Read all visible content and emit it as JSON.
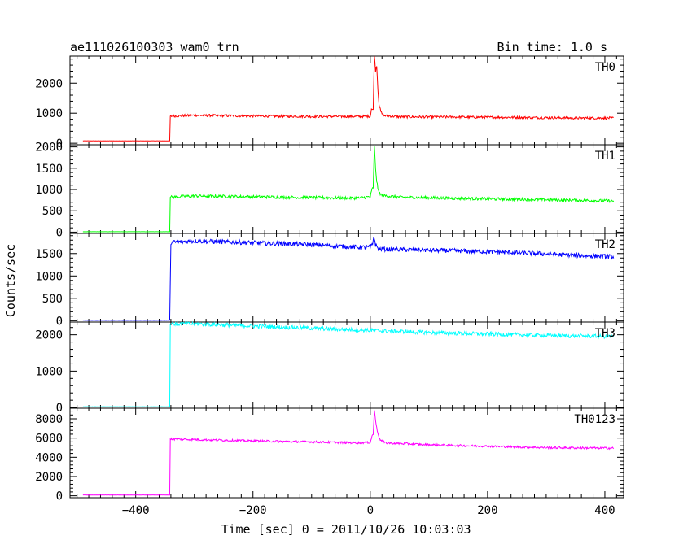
{
  "header": {
    "title": "ae111026100303_wam0_trn",
    "bin_time": "Bin time: 1.0 s"
  },
  "chart_data": {
    "type": "line",
    "title": "ae111026100303_wam0_trn",
    "xlabel": "Time [sec] 0 = 2011/10/26 10:03:03",
    "ylabel": "Counts/sec",
    "xlim": [
      -512,
      432
    ],
    "x_ticks": [
      -400,
      -200,
      0,
      200,
      400
    ],
    "panels": [
      {
        "name": "TH0",
        "color": "#ff0000",
        "ylim": [
          -50,
          2900
        ],
        "yticks": [
          0,
          1000,
          2000
        ],
        "points": [
          [
            -490,
            80
          ],
          [
            -342,
            80
          ],
          [
            -341,
            900
          ],
          [
            -300,
            930
          ],
          [
            -200,
            905
          ],
          [
            -100,
            890
          ],
          [
            -20,
            890
          ],
          [
            0,
            900
          ],
          [
            2,
            1150
          ],
          [
            5,
            1100
          ],
          [
            7,
            2950
          ],
          [
            9,
            2400
          ],
          [
            11,
            2600
          ],
          [
            13,
            1800
          ],
          [
            15,
            1300
          ],
          [
            18,
            1050
          ],
          [
            22,
            920
          ],
          [
            50,
            880
          ],
          [
            150,
            870
          ],
          [
            250,
            860
          ],
          [
            350,
            840
          ],
          [
            415,
            840
          ]
        ],
        "noise": 40
      },
      {
        "name": "TH1",
        "color": "#00ff00",
        "ylim": [
          -30,
          2050
        ],
        "yticks": [
          0,
          500,
          1000,
          1500,
          2000
        ],
        "points": [
          [
            -490,
            10
          ],
          [
            -342,
            10
          ],
          [
            -341,
            820
          ],
          [
            -300,
            850
          ],
          [
            -200,
            830
          ],
          [
            -100,
            810
          ],
          [
            -20,
            800
          ],
          [
            0,
            830
          ],
          [
            3,
            1000
          ],
          [
            5,
            1050
          ],
          [
            7,
            2000
          ],
          [
            9,
            1500
          ],
          [
            11,
            1200
          ],
          [
            14,
            950
          ],
          [
            20,
            860
          ],
          [
            50,
            820
          ],
          [
            150,
            790
          ],
          [
            250,
            770
          ],
          [
            350,
            750
          ],
          [
            415,
            730
          ]
        ],
        "noise": 35
      },
      {
        "name": "TH2",
        "color": "#0000ff",
        "ylim": [
          -30,
          1950
        ],
        "yticks": [
          0,
          500,
          1000,
          1500
        ],
        "points": [
          [
            -490,
            10
          ],
          [
            -342,
            10
          ],
          [
            -340,
            1750
          ],
          [
            -300,
            1780
          ],
          [
            -200,
            1740
          ],
          [
            -100,
            1700
          ],
          [
            -20,
            1640
          ],
          [
            0,
            1640
          ],
          [
            4,
            1700
          ],
          [
            6,
            1900
          ],
          [
            9,
            1700
          ],
          [
            14,
            1600
          ],
          [
            50,
            1590
          ],
          [
            150,
            1560
          ],
          [
            250,
            1520
          ],
          [
            350,
            1460
          ],
          [
            415,
            1430
          ]
        ],
        "noise": 50
      },
      {
        "name": "TH3",
        "color": "#00ffff",
        "ylim": [
          -20,
          2350
        ],
        "yticks": [
          0,
          1000,
          2000
        ],
        "points": [
          [
            -490,
            20
          ],
          [
            -342,
            20
          ],
          [
            -341,
            2300
          ],
          [
            -300,
            2300
          ],
          [
            -200,
            2240
          ],
          [
            -100,
            2180
          ],
          [
            0,
            2120
          ],
          [
            100,
            2060
          ],
          [
            200,
            2020
          ],
          [
            300,
            1980
          ],
          [
            415,
            1950
          ]
        ],
        "noise": 55
      },
      {
        "name": "TH0123",
        "color": "#ff00ff",
        "ylim": [
          -200,
          9100
        ],
        "yticks": [
          0,
          2000,
          4000,
          6000,
          8000
        ],
        "points": [
          [
            -490,
            80
          ],
          [
            -342,
            80
          ],
          [
            -341,
            5900
          ],
          [
            -300,
            5850
          ],
          [
            -200,
            5700
          ],
          [
            -100,
            5600
          ],
          [
            -20,
            5500
          ],
          [
            0,
            5550
          ],
          [
            3,
            6200
          ],
          [
            5,
            6400
          ],
          [
            7,
            8900
          ],
          [
            9,
            7800
          ],
          [
            12,
            6800
          ],
          [
            16,
            5900
          ],
          [
            25,
            5500
          ],
          [
            100,
            5300
          ],
          [
            200,
            5150
          ],
          [
            300,
            5000
          ],
          [
            415,
            4950
          ]
        ],
        "noise": 110
      }
    ]
  }
}
